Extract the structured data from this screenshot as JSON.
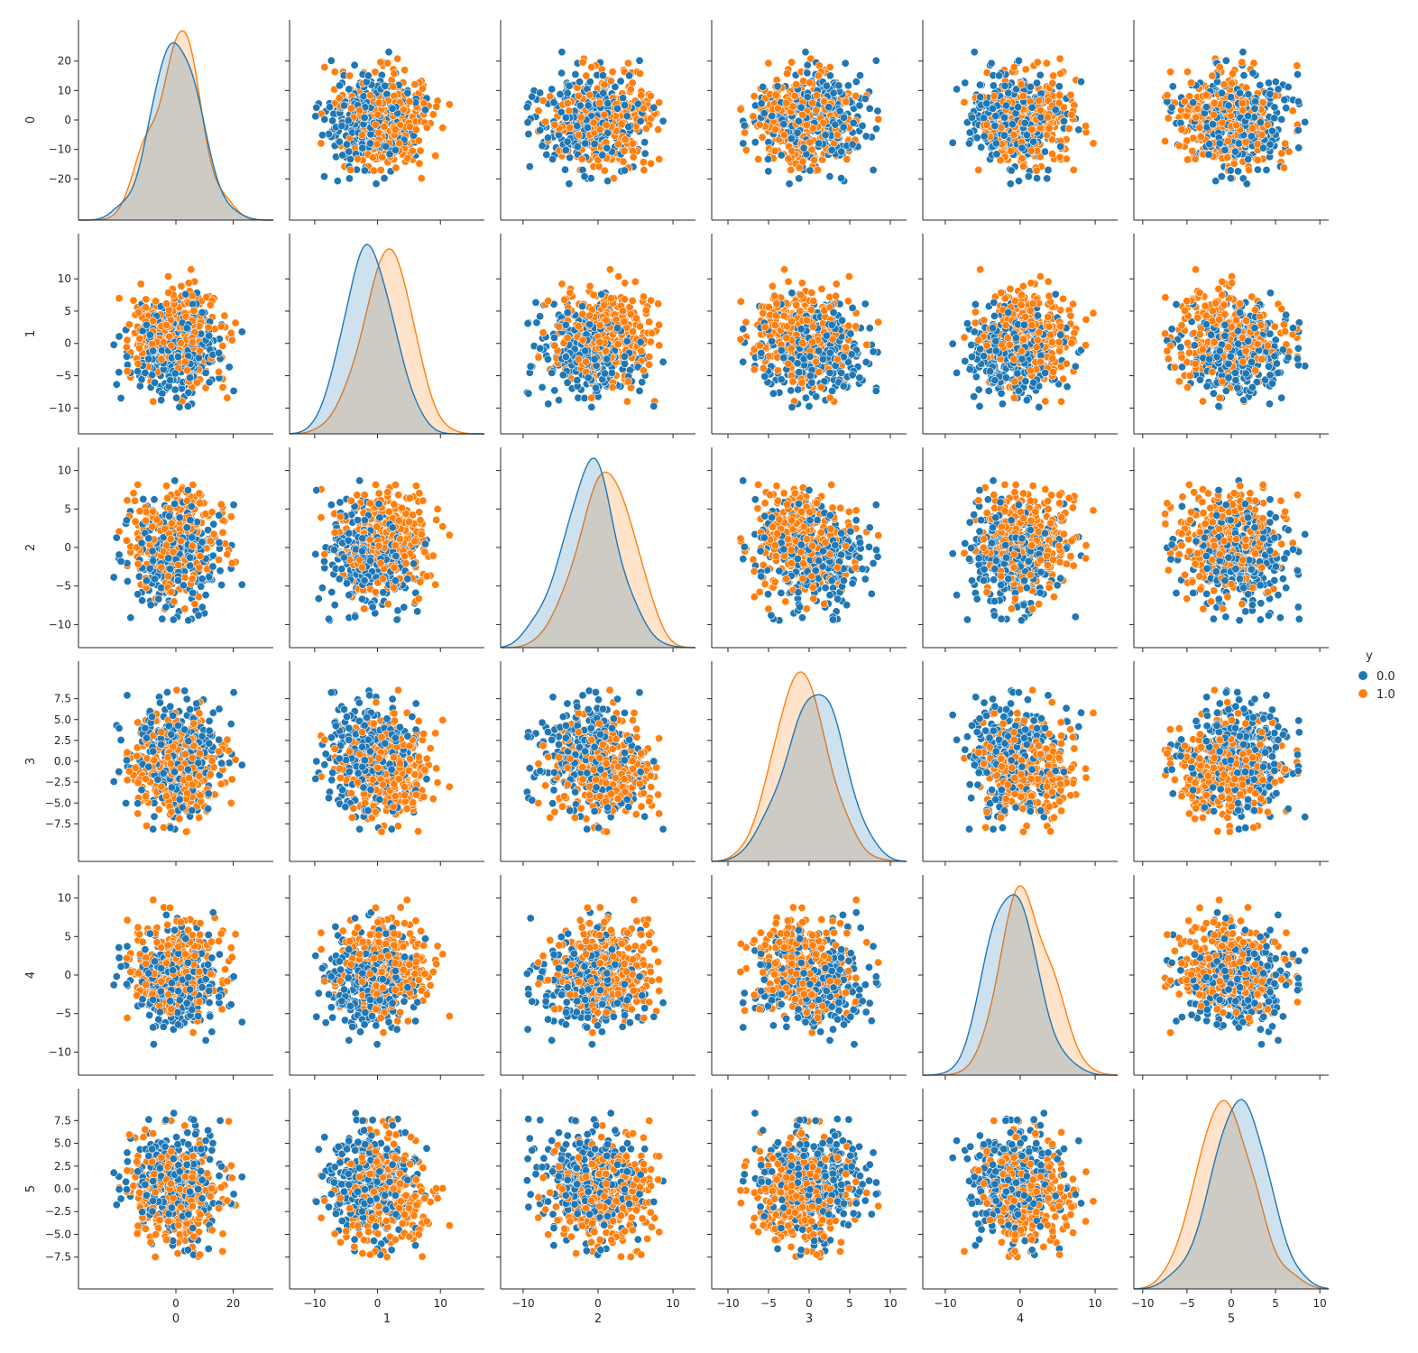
{
  "chart_data": {
    "type": "scatter",
    "title": "",
    "variables": [
      "0",
      "1",
      "2",
      "3",
      "4",
      "5"
    ],
    "hue": {
      "name": "y",
      "levels": [
        "0.0",
        "1.0"
      ],
      "colors": [
        "#1f77b4",
        "#ff7f0e"
      ]
    },
    "diagonal_kind": "kde",
    "points_per_class": 300,
    "axes": [
      {
        "name": "0",
        "lim": [
          -34,
          34
        ],
        "ticks": [
          -20,
          -10,
          0,
          10,
          20
        ],
        "x_ticks": [
          0,
          20
        ],
        "y_ticks": [
          -20,
          -10,
          0,
          10,
          20
        ],
        "range": [
          -26,
          26
        ],
        "scale": 7.5
      },
      {
        "name": "1",
        "lim": [
          -14,
          17
        ],
        "ticks": [
          -10,
          -5,
          0,
          5,
          10
        ],
        "x_ticks": [
          -10,
          0,
          10
        ],
        "y_ticks": [
          -10,
          -5,
          0,
          5,
          10
        ],
        "range": [
          -10,
          14
        ],
        "scale": 3.7
      },
      {
        "name": "2",
        "lim": [
          -13,
          13
        ],
        "ticks": [
          -10,
          -5,
          0,
          5,
          10
        ],
        "x_ticks": [
          -10,
          0,
          10
        ],
        "y_ticks": [
          -10,
          -5,
          0,
          5,
          10
        ],
        "range": [
          -9.5,
          10
        ],
        "scale": 3.4
      },
      {
        "name": "3",
        "lim": [
          -12,
          12
        ],
        "ticks": [
          -10,
          -5,
          0,
          5,
          10
        ],
        "x_ticks": [
          -10,
          -5,
          0,
          5,
          10
        ],
        "y_ticks": [
          -7.5,
          -5.0,
          -2.5,
          0.0,
          2.5,
          5.0,
          7.5
        ],
        "range": [
          -8.5,
          8.7
        ],
        "scale": 3.0
      },
      {
        "name": "4",
        "lim": [
          -13,
          13
        ],
        "ticks": [
          -10,
          -5,
          0,
          5,
          10
        ],
        "x_ticks": [
          -10,
          0,
          10
        ],
        "y_ticks": [
          -10,
          -5,
          0,
          5,
          10
        ],
        "range": [
          -10,
          10.5
        ],
        "scale": 3.0
      },
      {
        "name": "5",
        "lim": [
          -11,
          11
        ],
        "ticks": [
          -7.5,
          -5.0,
          -2.5,
          0.0,
          2.5,
          5.0,
          7.5
        ],
        "x_ticks": [
          -10,
          -5,
          0,
          5,
          10
        ],
        "y_ticks": [
          -7.5,
          -5.0,
          -2.5,
          0.0,
          2.5,
          5.0,
          7.5
        ],
        "range": [
          -7.5,
          8.5
        ],
        "scale": 2.9
      }
    ],
    "class_means": [
      [
        0.0,
        -1.0,
        -1.0,
        0.5,
        -0.8,
        0.5
      ],
      [
        0.5,
        1.2,
        1.0,
        -0.8,
        0.8,
        -0.7
      ]
    ],
    "x_tick_labels": {
      "0": [
        "0",
        "20"
      ],
      "1": [
        "−10",
        "0",
        "10"
      ],
      "2": [
        "−10",
        "0",
        "10"
      ],
      "3": [
        "−10",
        "−5",
        "0",
        "5",
        "10"
      ],
      "4": [
        "−10",
        "0",
        "10"
      ],
      "5": [
        "−10",
        "−5",
        "0",
        "5",
        "10"
      ]
    },
    "y_tick_labels": {
      "0": [
        "−20",
        "−10",
        "0",
        "10",
        "20"
      ],
      "1": [
        "−10",
        "−5",
        "0",
        "5",
        "10"
      ],
      "2": [
        "−10",
        "−5",
        "0",
        "5",
        "10"
      ],
      "3": [
        "−7.5",
        "−5.0",
        "−2.5",
        "0.0",
        "2.5",
        "5.0",
        "7.5"
      ],
      "4": [
        "−10",
        "−5",
        "0",
        "5",
        "10"
      ],
      "5": [
        "−7.5",
        "−5.0",
        "−2.5",
        "0.0",
        "2.5",
        "5.0",
        "7.5"
      ]
    },
    "legend": {
      "title": "y",
      "entries": [
        "0.0",
        "1.0"
      ],
      "placement": "center-right"
    },
    "grid": false
  }
}
